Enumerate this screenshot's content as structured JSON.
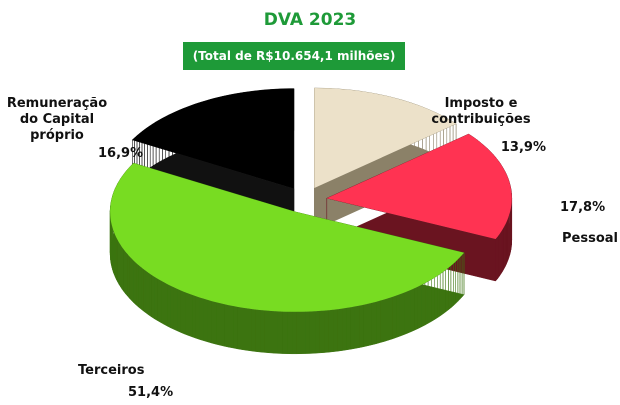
{
  "chart_data": {
    "type": "pie3d",
    "title": "DVA 2023",
    "subtitle": "(Total de R$10.654,1 milhões)",
    "categories": [
      "Imposto e contribuições",
      "Pessoal",
      "Terceiros",
      "Remuneração do Capital próprio"
    ],
    "values": [
      13.9,
      17.8,
      51.4,
      16.9
    ],
    "value_labels": [
      "13,9%",
      "17,8%",
      "51,4%",
      "16,9%"
    ],
    "colors": [
      "#ece1c9",
      "#ff3352",
      "#78dc22",
      "#000000"
    ],
    "side_colors": [
      "#8b8168",
      "#6a1420",
      "#3c7410",
      "#111111"
    ]
  }
}
